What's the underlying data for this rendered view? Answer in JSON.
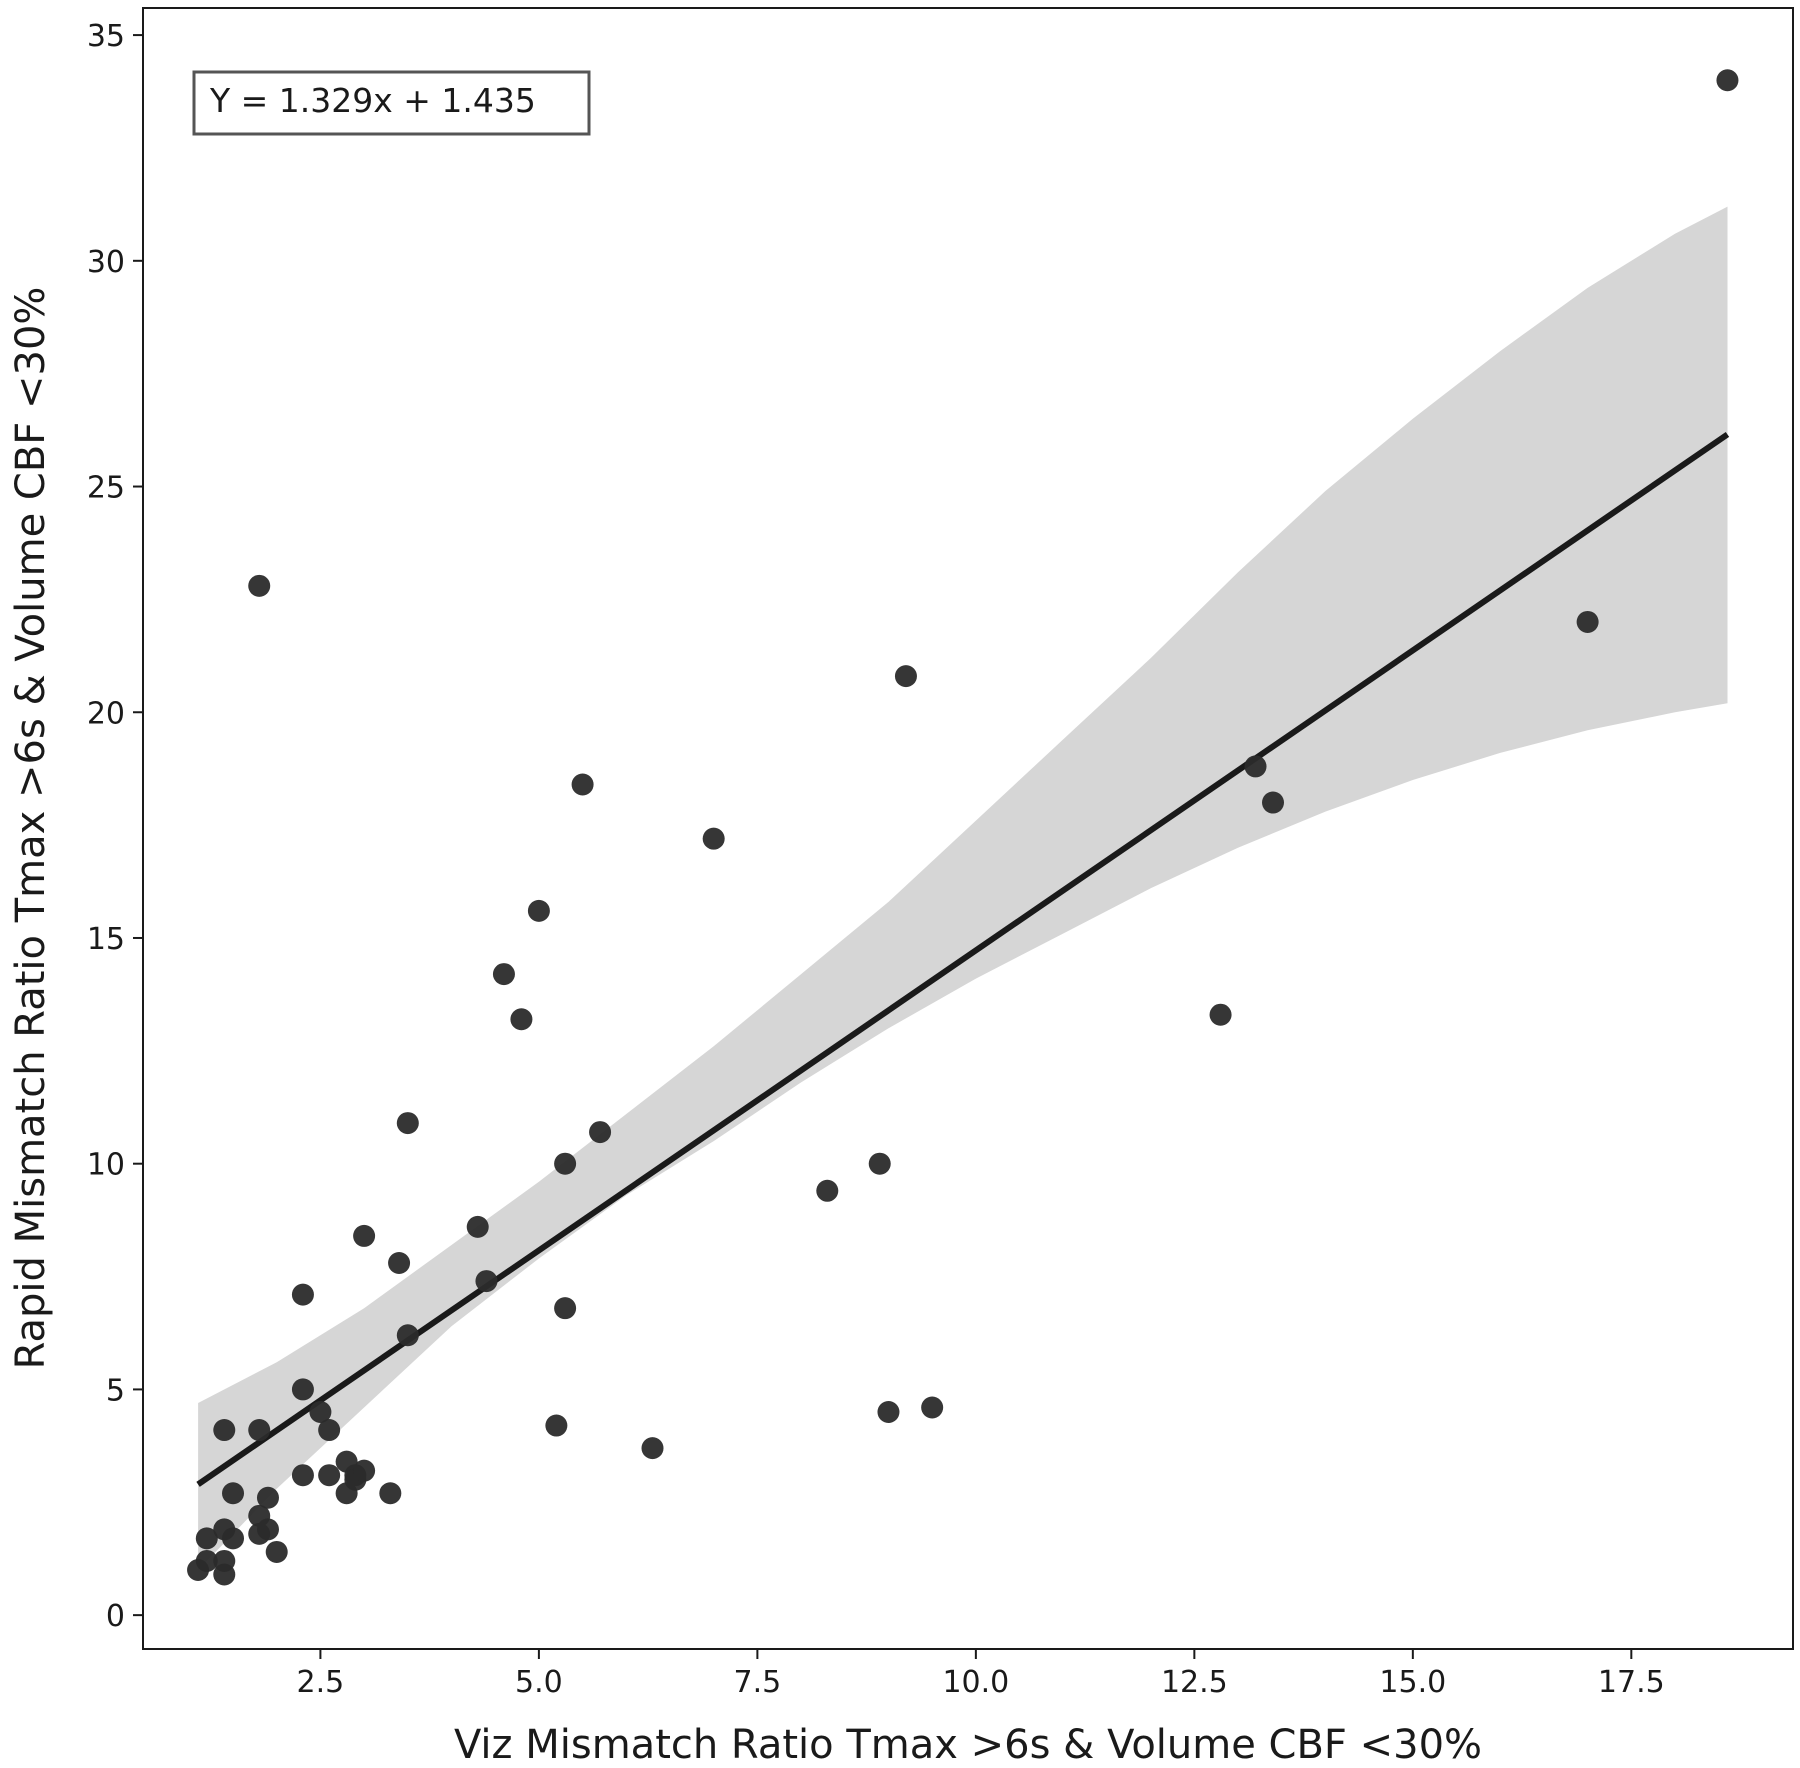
{
  "chart_data": {
    "type": "scatter",
    "title": "",
    "xlabel": "Viz Mismatch Ratio Tmax >6s & Volume CBF <30%",
    "ylabel": "Rapid Mismatch Ratio Tmax >6s & Volume CBF <30%",
    "xlim": [
      0.47,
      19.35
    ],
    "ylim": [
      -0.75,
      35.6
    ],
    "xticks": [
      2.5,
      5.0,
      7.5,
      10.0,
      12.5,
      15.0,
      17.5
    ],
    "xtick_labels": [
      "2.5",
      "5.0",
      "7.5",
      "10.0",
      "12.5",
      "15.0",
      "17.5"
    ],
    "yticks": [
      0,
      5,
      10,
      15,
      20,
      25,
      30,
      35
    ],
    "ytick_labels": [
      "0",
      "5",
      "10",
      "15",
      "20",
      "25",
      "30",
      "35"
    ],
    "grid": false,
    "annotation": "Y = 1.329x + 1.435",
    "regression": {
      "slope": 1.329,
      "intercept": 1.435,
      "x_range": [
        1.1,
        18.6
      ],
      "ci_band": [
        {
          "x": 1.1,
          "lo": 1.0,
          "hi": 4.7
        },
        {
          "x": 2.0,
          "lo": 2.8,
          "hi": 5.6
        },
        {
          "x": 3.0,
          "lo": 4.6,
          "hi": 6.8
        },
        {
          "x": 4.0,
          "lo": 6.4,
          "hi": 8.2
        },
        {
          "x": 5.0,
          "lo": 7.9,
          "hi": 9.6
        },
        {
          "x": 6.0,
          "lo": 9.3,
          "hi": 11.1
        },
        {
          "x": 7.0,
          "lo": 10.5,
          "hi": 12.6
        },
        {
          "x": 8.0,
          "lo": 11.8,
          "hi": 14.2
        },
        {
          "x": 9.0,
          "lo": 13.0,
          "hi": 15.8
        },
        {
          "x": 10.0,
          "lo": 14.1,
          "hi": 17.6
        },
        {
          "x": 11.0,
          "lo": 15.1,
          "hi": 19.4
        },
        {
          "x": 12.0,
          "lo": 16.1,
          "hi": 21.2
        },
        {
          "x": 13.0,
          "lo": 17.0,
          "hi": 23.1
        },
        {
          "x": 14.0,
          "lo": 17.8,
          "hi": 24.9
        },
        {
          "x": 15.0,
          "lo": 18.5,
          "hi": 26.5
        },
        {
          "x": 16.0,
          "lo": 19.1,
          "hi": 28.0
        },
        {
          "x": 17.0,
          "lo": 19.6,
          "hi": 29.4
        },
        {
          "x": 18.0,
          "lo": 20.0,
          "hi": 30.6
        },
        {
          "x": 18.6,
          "lo": 20.2,
          "hi": 31.2
        }
      ]
    },
    "series": [
      {
        "name": "patients",
        "color": "#2b2b2b",
        "points": [
          {
            "x": 1.1,
            "y": 1.0
          },
          {
            "x": 1.2,
            "y": 1.2
          },
          {
            "x": 1.2,
            "y": 1.7
          },
          {
            "x": 1.4,
            "y": 0.9
          },
          {
            "x": 1.4,
            "y": 1.2
          },
          {
            "x": 1.4,
            "y": 1.9
          },
          {
            "x": 1.5,
            "y": 1.7
          },
          {
            "x": 1.4,
            "y": 4.1
          },
          {
            "x": 1.5,
            "y": 2.7
          },
          {
            "x": 1.8,
            "y": 22.8
          },
          {
            "x": 1.8,
            "y": 4.1
          },
          {
            "x": 1.8,
            "y": 2.2
          },
          {
            "x": 1.8,
            "y": 1.8
          },
          {
            "x": 1.9,
            "y": 1.9
          },
          {
            "x": 1.9,
            "y": 2.6
          },
          {
            "x": 2.0,
            "y": 1.4
          },
          {
            "x": 2.3,
            "y": 7.1
          },
          {
            "x": 2.3,
            "y": 5.0
          },
          {
            "x": 2.3,
            "y": 3.1
          },
          {
            "x": 2.5,
            "y": 4.5
          },
          {
            "x": 2.6,
            "y": 4.1
          },
          {
            "x": 2.6,
            "y": 3.1
          },
          {
            "x": 2.8,
            "y": 3.4
          },
          {
            "x": 2.8,
            "y": 2.7
          },
          {
            "x": 2.9,
            "y": 3.1
          },
          {
            "x": 2.9,
            "y": 3.0
          },
          {
            "x": 3.0,
            "y": 8.4
          },
          {
            "x": 3.0,
            "y": 3.2
          },
          {
            "x": 3.3,
            "y": 2.7
          },
          {
            "x": 3.4,
            "y": 7.8
          },
          {
            "x": 3.5,
            "y": 10.9
          },
          {
            "x": 3.5,
            "y": 6.2
          },
          {
            "x": 4.3,
            "y": 8.6
          },
          {
            "x": 4.4,
            "y": 7.4
          },
          {
            "x": 4.6,
            "y": 14.2
          },
          {
            "x": 4.8,
            "y": 13.2
          },
          {
            "x": 5.0,
            "y": 15.6
          },
          {
            "x": 5.2,
            "y": 4.2
          },
          {
            "x": 5.3,
            "y": 10.0
          },
          {
            "x": 5.3,
            "y": 6.8
          },
          {
            "x": 5.5,
            "y": 18.4
          },
          {
            "x": 5.7,
            "y": 10.7
          },
          {
            "x": 6.3,
            "y": 3.7
          },
          {
            "x": 7.0,
            "y": 17.2
          },
          {
            "x": 8.3,
            "y": 9.4
          },
          {
            "x": 8.9,
            "y": 10.0
          },
          {
            "x": 9.0,
            "y": 4.5
          },
          {
            "x": 9.2,
            "y": 20.8
          },
          {
            "x": 9.5,
            "y": 4.6
          },
          {
            "x": 12.8,
            "y": 13.3
          },
          {
            "x": 13.2,
            "y": 18.8
          },
          {
            "x": 13.4,
            "y": 18.0
          },
          {
            "x": 17.0,
            "y": 22.0
          },
          {
            "x": 18.6,
            "y": 34.0
          }
        ]
      }
    ]
  }
}
